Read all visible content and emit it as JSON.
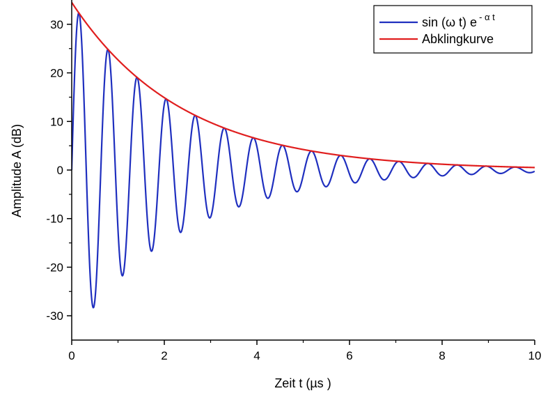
{
  "chart_data": {
    "type": "line",
    "xlabel": "Zeit t (µs )",
    "ylabel": "Amplitude A (dB)",
    "xlim": [
      0,
      10
    ],
    "ylim": [
      -35,
      35
    ],
    "x_ticks": [
      0,
      2,
      4,
      6,
      8,
      10
    ],
    "y_ticks": [
      -30,
      -20,
      -10,
      0,
      10,
      20,
      30
    ],
    "x_tick_labels": [
      "0",
      "2",
      "4",
      "6",
      "8",
      "10"
    ],
    "y_tick_labels": [
      "-30",
      "-20",
      "-10",
      "0",
      "10",
      "20",
      "30"
    ],
    "grid": false,
    "legend_position": "top-right",
    "series": [
      {
        "name_main": "sin (ω t) e",
        "name_sup": "- α t",
        "color": "#1f2fbf",
        "function": "A0*sin(omega*t)*exp(-alpha*t)",
        "params": {
          "A0": 34.5,
          "omega": 10.0,
          "alpha": 0.42
        },
        "x_start": 0,
        "x_end": 10
      },
      {
        "name": "Abklingkurve",
        "color": "#e01e1e",
        "function": "A0*exp(-alpha*t)",
        "params": {
          "A0": 34.5,
          "alpha": 0.42
        },
        "x_start": 0,
        "x_end": 10
      }
    ]
  }
}
